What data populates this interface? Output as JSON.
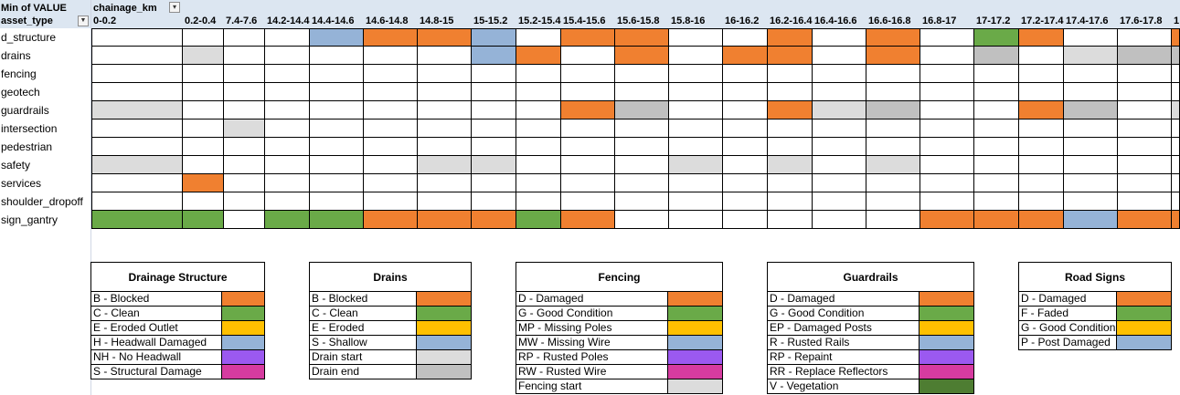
{
  "pivot": {
    "value_label": "Min of VALUE",
    "column_field": "chainage_km",
    "row_field": "asset_type",
    "filter_icon": "filter-dropdown-icon",
    "dropdown_icon": "dropdown-arrow-icon",
    "columns": [
      "0-0.2",
      "0.2-0.4",
      "7.4-7.6",
      "14.2-14.4",
      "14.4-14.6",
      "14.6-14.8",
      "14.8-15",
      "15-15.2",
      "15.2-15.4",
      "15.4-15.6",
      "15.6-15.8",
      "15.8-16",
      "16-16.2",
      "16.2-16.4",
      "16.4-16.6",
      "16.6-16.8",
      "16.8-17",
      "17-17.2",
      "17.2-17.4",
      "17.4-17.6",
      "17.6-17.8",
      "1"
    ],
    "rows": [
      "d_structure",
      "drains",
      "fencing",
      "geotech",
      "guardrails",
      "intersection",
      "pedestrian",
      "safety",
      "services",
      "shoulder_dropoff",
      "sign_gantry"
    ],
    "cell_colors": {
      "d_structure": [
        "",
        "",
        "",
        "",
        "#95b3d7",
        "#f08030",
        "#f08030",
        "#95b3d7",
        "",
        "#f08030",
        "#f08030",
        "",
        "",
        "#f08030",
        "",
        "#f08030",
        "",
        "#6aaa48",
        "#f08030",
        "",
        "",
        "#f08030"
      ],
      "drains": [
        "",
        "#dcdcdc",
        "",
        "",
        "",
        "",
        "",
        "#95b3d7",
        "#f08030",
        "",
        "#f08030",
        "",
        "#f08030",
        "#f08030",
        "",
        "#f08030",
        "",
        "#c0c0c0",
        "",
        "#dcdcdc",
        "#c0c0c0",
        "#c0c0c0"
      ],
      "fencing": [
        "",
        "",
        "",
        "",
        "",
        "",
        "",
        "",
        "",
        "",
        "",
        "",
        "",
        "",
        "",
        "",
        "",
        "",
        "",
        "",
        "",
        ""
      ],
      "geotech": [
        "",
        "",
        "",
        "",
        "",
        "",
        "",
        "",
        "",
        "",
        "",
        "",
        "",
        "",
        "",
        "",
        "",
        "",
        "",
        "",
        "",
        ""
      ],
      "guardrails": [
        "#dcdcdc",
        "",
        "",
        "",
        "",
        "",
        "",
        "",
        "",
        "#f08030",
        "#c0c0c0",
        "",
        "",
        "#f08030",
        "#dcdcdc",
        "#c0c0c0",
        "",
        "",
        "#f08030",
        "#c0c0c0",
        "",
        "#dcdcdc"
      ],
      "intersection": [
        "",
        "",
        "#dcdcdc",
        "",
        "",
        "",
        "",
        "",
        "",
        "",
        "",
        "",
        "",
        "",
        "",
        "",
        "",
        "",
        "",
        "",
        "",
        ""
      ],
      "pedestrian": [
        "",
        "",
        "",
        "",
        "",
        "",
        "",
        "",
        "",
        "",
        "",
        "",
        "",
        "",
        "",
        "",
        "",
        "",
        "",
        "",
        "",
        ""
      ],
      "safety": [
        "#dcdcdc",
        "",
        "",
        "",
        "",
        "",
        "#dcdcdc",
        "#dcdcdc",
        "",
        "",
        "",
        "#dcdcdc",
        "",
        "#dcdcdc",
        "",
        "#dcdcdc",
        "",
        "",
        "",
        "",
        "",
        ""
      ],
      "services": [
        "",
        "#f08030",
        "",
        "",
        "",
        "",
        "",
        "",
        "",
        "",
        "",
        "",
        "",
        "",
        "",
        "",
        "",
        "",
        "",
        "",
        "",
        ""
      ],
      "shoulder_dropoff": [
        "",
        "",
        "",
        "",
        "",
        "",
        "",
        "",
        "",
        "",
        "",
        "",
        "",
        "",
        "",
        "",
        "",
        "",
        "",
        "",
        "",
        ""
      ],
      "sign_gantry": [
        "#6aaa48",
        "#6aaa48",
        "",
        "#6aaa48",
        "#6aaa48",
        "#f08030",
        "#f08030",
        "#f08030",
        "#6aaa48",
        "#f08030",
        "",
        "",
        "",
        "",
        "",
        "",
        "#f08030",
        "#f08030",
        "#f08030",
        "#95b3d7",
        "#f08030",
        "#f08030"
      ]
    }
  },
  "legends": [
    {
      "title": "Drainage Structure",
      "items": [
        {
          "label": "B - Blocked",
          "color": "#f08030"
        },
        {
          "label": "C - Clean",
          "color": "#6aaa48"
        },
        {
          "label": "E - Eroded Outlet",
          "color": "#ffc000"
        },
        {
          "label": "H - Headwall Damaged",
          "color": "#95b3d7"
        },
        {
          "label": "NH - No Headwall",
          "color": "#9b59f0"
        },
        {
          "label": "S - Structural Damage",
          "color": "#d63ba0"
        }
      ]
    },
    {
      "title": "Drains",
      "items": [
        {
          "label": "B - Blocked",
          "color": "#f08030"
        },
        {
          "label": "C - Clean",
          "color": "#6aaa48"
        },
        {
          "label": "E - Eroded",
          "color": "#ffc000"
        },
        {
          "label": "S - Shallow",
          "color": "#95b3d7"
        },
        {
          "label": "Drain start",
          "color": "#dcdcdc"
        },
        {
          "label": "Drain end",
          "color": "#c0c0c0"
        }
      ]
    },
    {
      "title": "Fencing",
      "items": [
        {
          "label": "D - Damaged",
          "color": "#f08030"
        },
        {
          "label": "G - Good Condition",
          "color": "#6aaa48"
        },
        {
          "label": "MP - Missing Poles",
          "color": "#ffc000"
        },
        {
          "label": "MW - Missing Wire",
          "color": "#95b3d7"
        },
        {
          "label": "RP - Rusted Poles",
          "color": "#9b59f0"
        },
        {
          "label": "RW - Rusted Wire",
          "color": "#d63ba0"
        },
        {
          "label": "Fencing start",
          "color": "#dcdcdc"
        }
      ]
    },
    {
      "title": "Guardrails",
      "items": [
        {
          "label": "D - Damaged",
          "color": "#f08030"
        },
        {
          "label": "G - Good Condition",
          "color": "#6aaa48"
        },
        {
          "label": "EP - Damaged Posts",
          "color": "#ffc000"
        },
        {
          "label": "R - Rusted Rails",
          "color": "#95b3d7"
        },
        {
          "label": "RP - Repaint",
          "color": "#9b59f0"
        },
        {
          "label": "RR - Replace Reflectors",
          "color": "#d63ba0"
        },
        {
          "label": "V - Vegetation",
          "color": "#4e7d32"
        }
      ]
    },
    {
      "title": "Road Signs",
      "items": [
        {
          "label": "D - Damaged",
          "color": "#f08030"
        },
        {
          "label": "F - Faded",
          "color": "#6aaa48"
        },
        {
          "label": "G - Good Condition",
          "color": "#ffc000"
        },
        {
          "label": "P - Post Damaged",
          "color": "#95b3d7"
        }
      ]
    }
  ]
}
